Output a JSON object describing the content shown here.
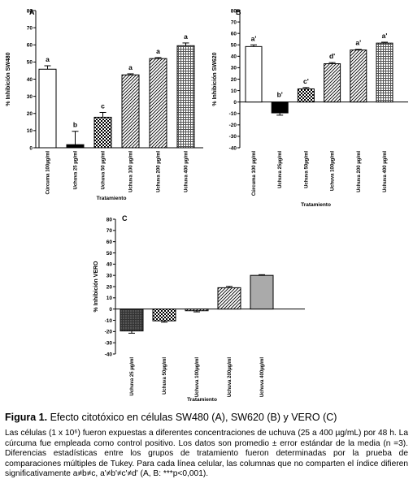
{
  "chart_data": [
    {
      "type": "bar",
      "panel_label": "A",
      "ylabel": "% Inhibición SW480",
      "xlabel": "Tratamiento",
      "ylim": [
        0,
        80
      ],
      "yticks": [
        0,
        10,
        20,
        30,
        40,
        50,
        60,
        70,
        80
      ],
      "categories": [
        "Cúrcuma 100µg/ml",
        "Uchuva 25 µg/ml",
        "Uchuva 50 µg/ml",
        "Uchuva 100 µg/ml",
        "Uchuva 200 µg/ml",
        "Uchuva 400 µg/ml"
      ],
      "values": [
        45.8,
        1.8,
        17.8,
        42.5,
        52.0,
        59.5
      ],
      "errors": [
        2.0,
        7.8,
        2.8,
        0.6,
        0.6,
        1.6
      ],
      "letters": [
        "a",
        "b",
        "c",
        "a",
        "a",
        "a"
      ],
      "patterns": [
        "white",
        "black",
        "check",
        "diag",
        "diag",
        "grid"
      ]
    },
    {
      "type": "bar",
      "panel_label": "B",
      "ylabel": "% Inhibición SW620",
      "xlabel": "Tratamiento",
      "ylim": [
        -40,
        80
      ],
      "yticks": [
        -40,
        -30,
        -20,
        -10,
        0,
        10,
        20,
        30,
        40,
        50,
        60,
        70,
        80
      ],
      "categories": [
        "Cúrcuma 100 µg/ml",
        "Uchuva 25µg/ml",
        "Uchuva 50µg/ml",
        "Uchuva 100µg/ml",
        "Uchuva 200 µg/ml",
        "Uchuva 400 µg/ml"
      ],
      "values": [
        48.5,
        -9.5,
        11.5,
        33.5,
        45.5,
        51.5
      ],
      "errors": [
        1.5,
        2.0,
        1.2,
        1.0,
        0.6,
        0.8
      ],
      "letters": [
        "a'",
        "b'",
        "c'",
        "d'",
        "a'",
        "a'"
      ],
      "patterns": [
        "white",
        "black",
        "check",
        "diag",
        "diag",
        "grid"
      ]
    },
    {
      "type": "bar",
      "panel_label": "C",
      "ylabel": "% Inhibición VERO",
      "xlabel": "Tratamiento",
      "ylim": [
        -40,
        80
      ],
      "yticks": [
        -40,
        -30,
        -20,
        -10,
        0,
        10,
        20,
        30,
        40,
        50,
        60,
        70,
        80
      ],
      "categories": [
        "Uchuva 25 µg/ml",
        "Uchuva 50µg/ml",
        "Uchuva 100µg/ml",
        "Uchuva 200µg/ml",
        "Uchuva 400µg/ml"
      ],
      "values": [
        -19.5,
        -10.5,
        -1.5,
        19.0,
        30.0
      ],
      "errors": [
        2.0,
        1.2,
        1.0,
        1.2,
        0.6
      ],
      "patterns": [
        "dark",
        "check",
        "diag",
        "diag",
        "gray"
      ]
    }
  ],
  "caption": {
    "label": "Figura 1.",
    "title": " Efecto citotóxico en células SW480 (A), SW620 (B) y VERO (C)",
    "body": "Las células (1 x 10⁶) fueron expuestas a diferentes concentraciones de uchuva (25 a 400 µg/mL) por 48 h. La cúrcuma fue empleada como control positivo. Los datos son promedio ± error estándar de la media (n =3). Diferencias estadísticas entre los grupos de tratamiento fueron determinadas por la prueba de comparaciones múltiples de Tukey. Para cada línea celular, las columnas que no comparten el índice difieren significativamente a≠b≠c, a'≠b'≠c'≠d' (A, B: ***p<0,001)."
  }
}
